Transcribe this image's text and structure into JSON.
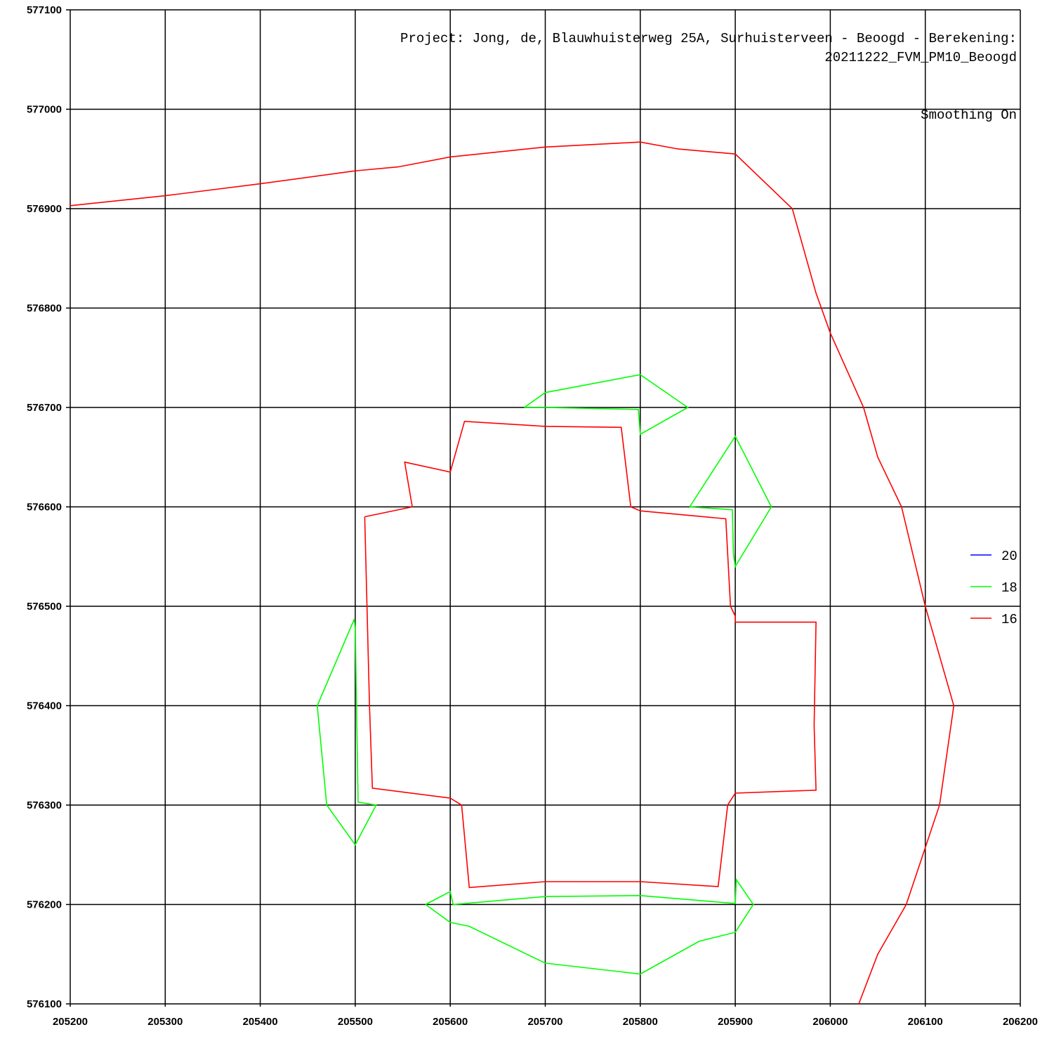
{
  "header": {
    "line1": "Project: Jong, de, Blauwhuisterweg 25A, Surhuisterveen - Beoogd  -  Berekening:",
    "line2": "20211222_FVM_PM10_Beoogd",
    "smoothing": "Smoothing On"
  },
  "chart_data": {
    "type": "line",
    "title": "",
    "xlabel": "",
    "ylabel": "",
    "xlim": [
      205200,
      206200
    ],
    "ylim": [
      576100,
      577100
    ],
    "grid": true,
    "legend_position": "right",
    "x_ticks": [
      "205200",
      "205300",
      "205400",
      "205500",
      "205600",
      "205700",
      "205800",
      "205900",
      "206000",
      "206100",
      "206200"
    ],
    "y_ticks": [
      "577100",
      "577000",
      "576900",
      "576800",
      "576700",
      "576600",
      "576500",
      "576400",
      "576300",
      "576200",
      "576100"
    ],
    "legend": [
      {
        "label": "20",
        "color": "#0000ff"
      },
      {
        "label": "18",
        "color": "#00ff00"
      },
      {
        "label": "16",
        "color": "#ff0000"
      }
    ],
    "series": [
      {
        "name": "16",
        "color": "#ff0000",
        "paths": [
          [
            [
              205200,
              576903
            ],
            [
              205300,
              576913
            ],
            [
              205400,
              576925
            ],
            [
              205500,
              576938
            ],
            [
              205545,
              576942
            ],
            [
              205600,
              576952
            ],
            [
              205700,
              576962
            ],
            [
              205800,
              576967
            ],
            [
              205840,
              576960
            ],
            [
              205900,
              576955
            ],
            [
              205960,
              576900
            ],
            [
              205985,
              576815
            ],
            [
              206000,
              576775
            ],
            [
              206035,
              576700
            ],
            [
              206050,
              576650
            ],
            [
              206075,
              576600
            ],
            [
              206100,
              576500
            ],
            [
              206130,
              576400
            ],
            [
              206115,
              576300
            ],
            [
              206080,
              576200
            ],
            [
              206050,
              576150
            ],
            [
              206030,
              576100
            ]
          ],
          [
            [
              205510,
              576590
            ],
            [
              205560,
              576600
            ],
            [
              205552,
              576645
            ],
            [
              205600,
              576635
            ],
            [
              205615,
              576686
            ],
            [
              205700,
              576681
            ],
            [
              205780,
              576680
            ],
            [
              205790,
              576600
            ],
            [
              205800,
              576596
            ],
            [
              205890,
              576588
            ],
            [
              205895,
              576500
            ],
            [
              205900,
              576490
            ],
            [
              205900,
              576484
            ],
            [
              205985,
              576484
            ],
            [
              205983,
              576380
            ],
            [
              205985,
              576315
            ],
            [
              205900,
              576312
            ],
            [
              205892,
              576300
            ],
            [
              205882,
              576218
            ],
            [
              205800,
              576223
            ],
            [
              205700,
              576223
            ],
            [
              205620,
              576217
            ],
            [
              205612,
              576300
            ],
            [
              205600,
              576307
            ],
            [
              205518,
              576317
            ],
            [
              205515,
              576400
            ],
            [
              205510,
              576590
            ]
          ]
        ]
      },
      {
        "name": "18",
        "color": "#00ff00",
        "paths": [
          [
            [
              205678,
              576700
            ],
            [
              205700,
              576715
            ],
            [
              205800,
              576733
            ],
            [
              205850,
              576700
            ],
            [
              205800,
              576673
            ],
            [
              205798,
              576698
            ],
            [
              205700,
              576700
            ],
            [
              205678,
              576700
            ]
          ],
          [
            [
              205852,
              576600
            ],
            [
              205900,
              576671
            ],
            [
              205938,
              576600
            ],
            [
              205900,
              576540
            ],
            [
              205898,
              576553
            ],
            [
              205897,
              576597
            ],
            [
              205852,
              576600
            ]
          ],
          [
            [
              205499,
              576487
            ],
            [
              205460,
              576400
            ],
            [
              205470,
              576300
            ],
            [
              205500,
              576260
            ],
            [
              205522,
              576300
            ],
            [
              205503,
              576303
            ],
            [
              205500,
              576477
            ],
            [
              205499,
              576487
            ]
          ],
          [
            [
              205574,
              576200
            ],
            [
              205600,
              576213
            ],
            [
              205603,
              576200
            ],
            [
              205700,
              576208
            ],
            [
              205800,
              576209
            ],
            [
              205900,
              576201
            ],
            [
              205901,
              576225
            ],
            [
              205919,
              576200
            ],
            [
              205900,
              576172
            ],
            [
              205862,
              576163
            ],
            [
              205800,
              576130
            ],
            [
              205700,
              576141
            ],
            [
              205620,
              576178
            ],
            [
              205600,
              576182
            ],
            [
              205574,
              576200
            ]
          ]
        ]
      },
      {
        "name": "20",
        "color": "#0000ff",
        "paths": []
      }
    ]
  }
}
